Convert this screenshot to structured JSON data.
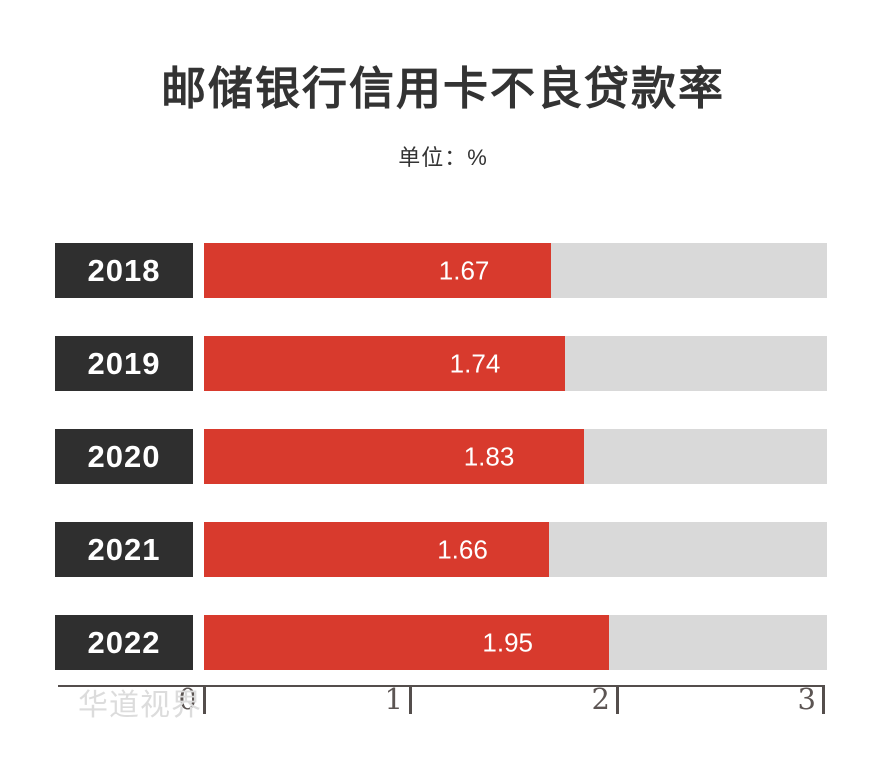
{
  "chart": {
    "title": "邮储银行信用卡不良贷款率",
    "subtitle": "单位：%",
    "watermark": "华道视界",
    "axis_max": 3,
    "axis_ticks": [
      "0",
      "1",
      "2",
      "3"
    ],
    "colors": {
      "bar_fill": "#d83a2d",
      "bar_track": "#d9d9d9",
      "year_box": "#2f2f2f",
      "title_text": "#333333",
      "axis": "#544e4c",
      "watermark": "#dcdcdc"
    },
    "rows": [
      {
        "year": "2018",
        "value": 1.67,
        "label": "1.67"
      },
      {
        "year": "2019",
        "value": 1.74,
        "label": "1.74"
      },
      {
        "year": "2020",
        "value": 1.83,
        "label": "1.83"
      },
      {
        "year": "2021",
        "value": 1.66,
        "label": "1.66"
      },
      {
        "year": "2022",
        "value": 1.95,
        "label": "1.95"
      }
    ]
  },
  "chart_data": {
    "type": "bar",
    "orientation": "horizontal",
    "title": "邮储银行信用卡不良贷款率",
    "subtitle": "单位：%",
    "unit": "%",
    "categories": [
      "2018",
      "2019",
      "2020",
      "2021",
      "2022"
    ],
    "values": [
      1.67,
      1.74,
      1.83,
      1.66,
      1.95
    ],
    "xlabel": "",
    "ylabel": "",
    "xlim": [
      0,
      3
    ],
    "xticks": [
      0,
      1,
      2,
      3
    ],
    "grid": false,
    "legend": false,
    "data_labels_inside_bars": true,
    "watermark": "华道视界"
  }
}
